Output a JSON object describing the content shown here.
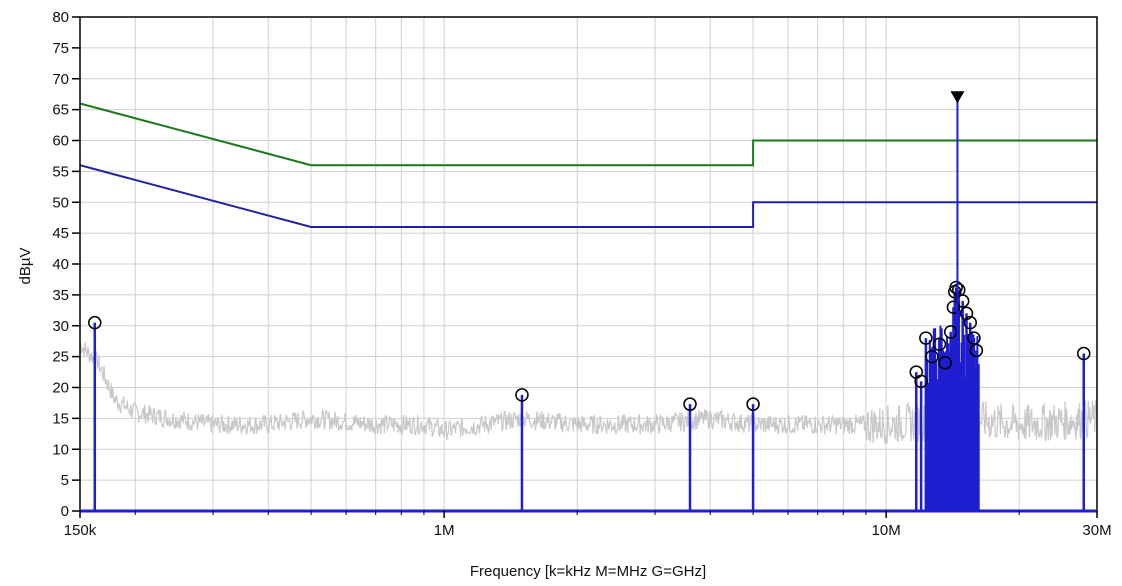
{
  "chart_data": {
    "type": "line",
    "xlabel": "Frequency [k=kHz M=MHz G=GHz]",
    "ylabel": "dBµV",
    "x_scale": "log",
    "xlim": [
      150000,
      30000000
    ],
    "ylim": [
      0,
      80
    ],
    "grid": true,
    "x_tick_values": [
      150000,
      1000000,
      10000000,
      30000000
    ],
    "x_tick_labels": [
      "150k",
      "1M",
      "10M",
      "30M"
    ],
    "y_ticks": [
      0,
      5,
      10,
      15,
      20,
      25,
      30,
      35,
      40,
      45,
      50,
      55,
      60,
      65,
      70,
      75,
      80
    ],
    "colors": {
      "limit_qp": "#1a7a1a",
      "limit_avg": "#1f1fa8",
      "peaks": "#1f1fd0",
      "noise": "#c8c8c8",
      "grid": "#d0d0d0",
      "frame": "#000000"
    },
    "series": [
      {
        "kind": "limit_qp",
        "x": [
          150000,
          500000,
          500000,
          5000000,
          5000000,
          30000000
        ],
        "y": [
          66,
          56,
          56,
          56,
          60,
          60
        ]
      },
      {
        "kind": "limit_avg",
        "x": [
          150000,
          500000,
          500000,
          5000000,
          5000000,
          30000000
        ],
        "y": [
          56,
          46,
          46,
          46,
          50,
          50
        ]
      },
      {
        "kind": "noise_floor",
        "x": [
          150000,
          165000,
          180000,
          200000,
          240000,
          300000,
          400000,
          500000,
          700000,
          900000,
          1000000,
          1500000,
          2000000,
          3000000,
          4000000,
          5000000,
          7000000,
          10000000,
          15000000,
          20000000,
          30000000
        ],
        "y": [
          27,
          24,
          18,
          16,
          15,
          14,
          14,
          15,
          14,
          14,
          13,
          15,
          14,
          14,
          15,
          14,
          14,
          14,
          15,
          14,
          15
        ]
      }
    ],
    "peaks": {
      "circled": [
        {
          "x": 162000,
          "y": 30.5
        },
        {
          "x": 1500000,
          "y": 18.8
        },
        {
          "x": 3600000,
          "y": 17.3
        },
        {
          "x": 5000000,
          "y": 17.3
        },
        {
          "x": 11700000,
          "y": 22.5
        },
        {
          "x": 12000000,
          "y": 21.0
        },
        {
          "x": 12300000,
          "y": 28.0
        },
        {
          "x": 12700000,
          "y": 25.0
        },
        {
          "x": 13200000,
          "y": 27.0
        },
        {
          "x": 13600000,
          "y": 24.0
        },
        {
          "x": 14000000,
          "y": 29.0
        },
        {
          "x": 14200000,
          "y": 33.0
        },
        {
          "x": 14300000,
          "y": 35.5
        },
        {
          "x": 14400000,
          "y": 36.2
        },
        {
          "x": 14600000,
          "y": 35.8
        },
        {
          "x": 14900000,
          "y": 34.0
        },
        {
          "x": 15200000,
          "y": 32.0
        },
        {
          "x": 15500000,
          "y": 30.5
        },
        {
          "x": 15800000,
          "y": 28.0
        },
        {
          "x": 16000000,
          "y": 26.0
        },
        {
          "x": 28000000,
          "y": 25.5
        }
      ],
      "cluster_fill": {
        "x_start": 12300000,
        "x_end": 16200000,
        "y_min": 20,
        "y_max": 31
      },
      "marker": {
        "x": 14500000,
        "y": 67
      }
    }
  }
}
